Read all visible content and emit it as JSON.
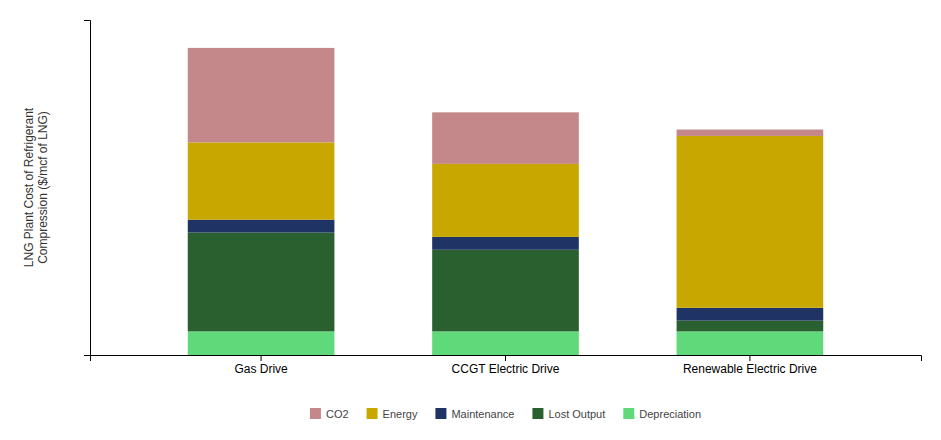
{
  "chart_data": {
    "type": "bar",
    "stacked": true,
    "ylabel": "LNG Plant Cost of Refrigerant\nCompression ($/mcf of LNG)",
    "categories": [
      "Gas Drive",
      "CCGT Electric Drive",
      "Renewable Electric Drive"
    ],
    "series": [
      {
        "name": "Depreciation",
        "color": "#5fd97a",
        "values": [
          0.055,
          0.055,
          0.055
        ]
      },
      {
        "name": "Lost Output",
        "color": "#2a6030",
        "values": [
          0.23,
          0.19,
          0.025
        ]
      },
      {
        "name": "Maintenance",
        "color": "#1f3464",
        "values": [
          0.03,
          0.03,
          0.03
        ]
      },
      {
        "name": "Energy",
        "color": "#c8a800",
        "values": [
          0.18,
          0.17,
          0.4
        ]
      },
      {
        "name": "CO2",
        "color": "#c4888a",
        "values": [
          0.22,
          0.12,
          0.015
        ]
      }
    ],
    "ylim": [
      0,
      0.78
    ],
    "yticks": [],
    "grid": false,
    "tick_labels": "x",
    "legend": "bottom"
  }
}
